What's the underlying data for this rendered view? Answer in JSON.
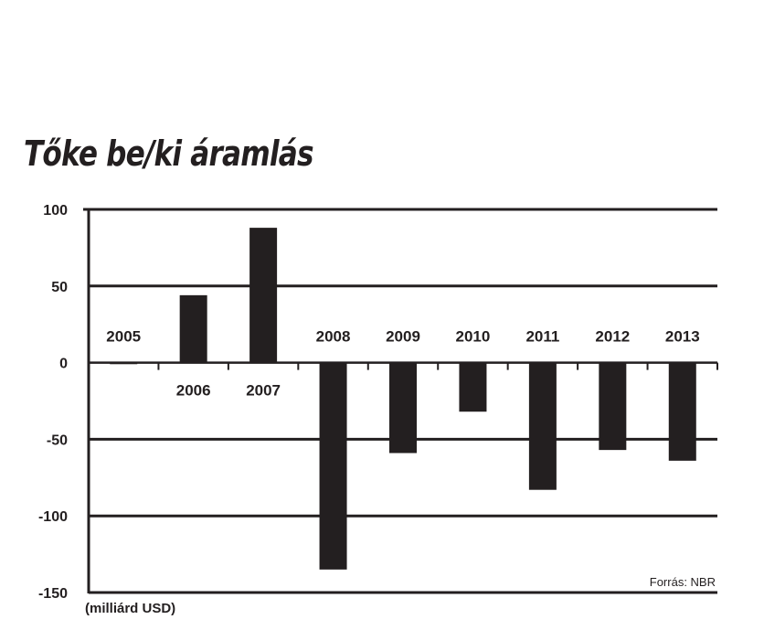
{
  "chart_data": {
    "type": "bar",
    "title": "Tőke be/ki áramlás",
    "categories": [
      "2005",
      "2006",
      "2007",
      "2008",
      "2009",
      "2010",
      "2011",
      "2012",
      "2013"
    ],
    "values": [
      -1,
      44,
      88,
      -135,
      -59,
      -32,
      -83,
      -57,
      -64
    ],
    "ylabel": "(milliárd USD)",
    "ylim": [
      -150,
      100
    ],
    "yticks": [
      100,
      50,
      0,
      -50,
      -100,
      -150
    ],
    "grid": true,
    "bar_color": "#231f20",
    "source": "Forrás: NBR"
  }
}
